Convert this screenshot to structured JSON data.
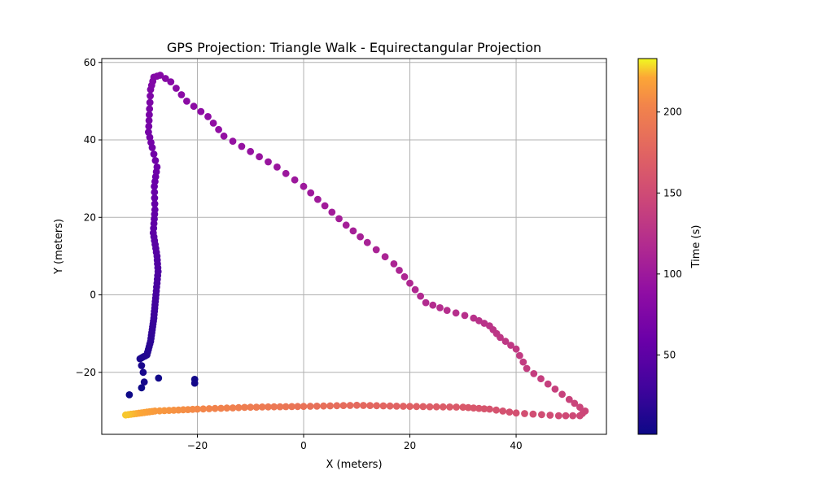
{
  "chart_data": {
    "type": "scatter",
    "title": "GPS Projection: Triangle Walk - Equirectangular Projection",
    "xlabel": "X (meters)",
    "ylabel": "Y (meters)",
    "xlim": [
      -38,
      57
    ],
    "ylim": [
      -36,
      61
    ],
    "xticks": [
      -20,
      0,
      20,
      40
    ],
    "yticks": [
      -20,
      0,
      20,
      40,
      60
    ],
    "grid": true,
    "colormap": "plasma",
    "colorbar": {
      "label": "Time (s)",
      "range": [
        1,
        233
      ],
      "ticks": [
        50,
        100,
        150,
        200
      ]
    },
    "waypoints": [
      {
        "x": -32.8,
        "y": -25.8,
        "t": 1
      },
      {
        "x": -30.5,
        "y": -24.0,
        "t": 2
      },
      {
        "x": -27.3,
        "y": -21.5,
        "t": 3
      },
      {
        "x": -20.5,
        "y": -21.8,
        "t": 4
      },
      {
        "x": -20.5,
        "y": -22.8,
        "t": 5
      },
      {
        "x": -30.0,
        "y": -22.5,
        "t": 6
      },
      {
        "x": -30.2,
        "y": -20.0,
        "t": 7
      },
      {
        "x": -30.8,
        "y": -16.5,
        "t": 9
      },
      {
        "x": -29.5,
        "y": -15.5,
        "t": 13
      },
      {
        "x": -28.8,
        "y": -12.0,
        "t": 18
      },
      {
        "x": -28.2,
        "y": -6.0,
        "t": 26
      },
      {
        "x": -27.8,
        "y": 0.0,
        "t": 33
      },
      {
        "x": -27.4,
        "y": 6.0,
        "t": 39
      },
      {
        "x": -27.6,
        "y": 10.0,
        "t": 43
      },
      {
        "x": -28.3,
        "y": 16.0,
        "t": 49
      },
      {
        "x": -28.0,
        "y": 22.0,
        "t": 54
      },
      {
        "x": -28.1,
        "y": 28.0,
        "t": 58
      },
      {
        "x": -27.6,
        "y": 33.0,
        "t": 62
      },
      {
        "x": -28.5,
        "y": 38.0,
        "t": 65
      },
      {
        "x": -29.2,
        "y": 42.0,
        "t": 68
      },
      {
        "x": -29.0,
        "y": 48.0,
        "t": 72
      },
      {
        "x": -28.8,
        "y": 53.0,
        "t": 75
      },
      {
        "x": -28.2,
        "y": 56.2,
        "t": 78
      },
      {
        "x": -27.0,
        "y": 56.7,
        "t": 80
      },
      {
        "x": -25.0,
        "y": 55.0,
        "t": 82
      },
      {
        "x": -22.0,
        "y": 50.0,
        "t": 85
      },
      {
        "x": -18.0,
        "y": 46.0,
        "t": 88
      },
      {
        "x": -15.0,
        "y": 41.0,
        "t": 91
      },
      {
        "x": -10.0,
        "y": 37.0,
        "t": 94
      },
      {
        "x": -5.0,
        "y": 33.0,
        "t": 97
      },
      {
        "x": 0.0,
        "y": 28.0,
        "t": 100
      },
      {
        "x": 4.0,
        "y": 23.0,
        "t": 103
      },
      {
        "x": 8.0,
        "y": 18.0,
        "t": 106
      },
      {
        "x": 12.0,
        "y": 13.5,
        "t": 109
      },
      {
        "x": 17.0,
        "y": 8.0,
        "t": 112
      },
      {
        "x": 20.0,
        "y": 3.0,
        "t": 115
      },
      {
        "x": 23.0,
        "y": -2.0,
        "t": 118
      },
      {
        "x": 27.0,
        "y": -4.0,
        "t": 121
      },
      {
        "x": 32.0,
        "y": -6.0,
        "t": 124
      },
      {
        "x": 35.0,
        "y": -8.0,
        "t": 127
      },
      {
        "x": 37.0,
        "y": -11.0,
        "t": 130
      },
      {
        "x": 40.0,
        "y": -14.0,
        "t": 133
      },
      {
        "x": 42.0,
        "y": -19.0,
        "t": 136
      },
      {
        "x": 46.0,
        "y": -23.0,
        "t": 139
      },
      {
        "x": 50.0,
        "y": -27.0,
        "t": 142
      },
      {
        "x": 53.0,
        "y": -30.0,
        "t": 145
      },
      {
        "x": 52.0,
        "y": -31.2,
        "t": 147
      },
      {
        "x": 48.0,
        "y": -31.2,
        "t": 150
      },
      {
        "x": 40.0,
        "y": -30.5,
        "t": 155
      },
      {
        "x": 35.0,
        "y": -29.5,
        "t": 159
      },
      {
        "x": 30.0,
        "y": -29.0,
        "t": 164
      },
      {
        "x": 20.0,
        "y": -28.8,
        "t": 172
      },
      {
        "x": 10.0,
        "y": -28.5,
        "t": 180
      },
      {
        "x": 0.0,
        "y": -28.8,
        "t": 188
      },
      {
        "x": -10.0,
        "y": -29.0,
        "t": 197
      },
      {
        "x": -20.0,
        "y": -29.5,
        "t": 206
      },
      {
        "x": -28.0,
        "y": -30.0,
        "t": 215
      },
      {
        "x": -33.5,
        "y": -31.0,
        "t": 226
      }
    ]
  }
}
